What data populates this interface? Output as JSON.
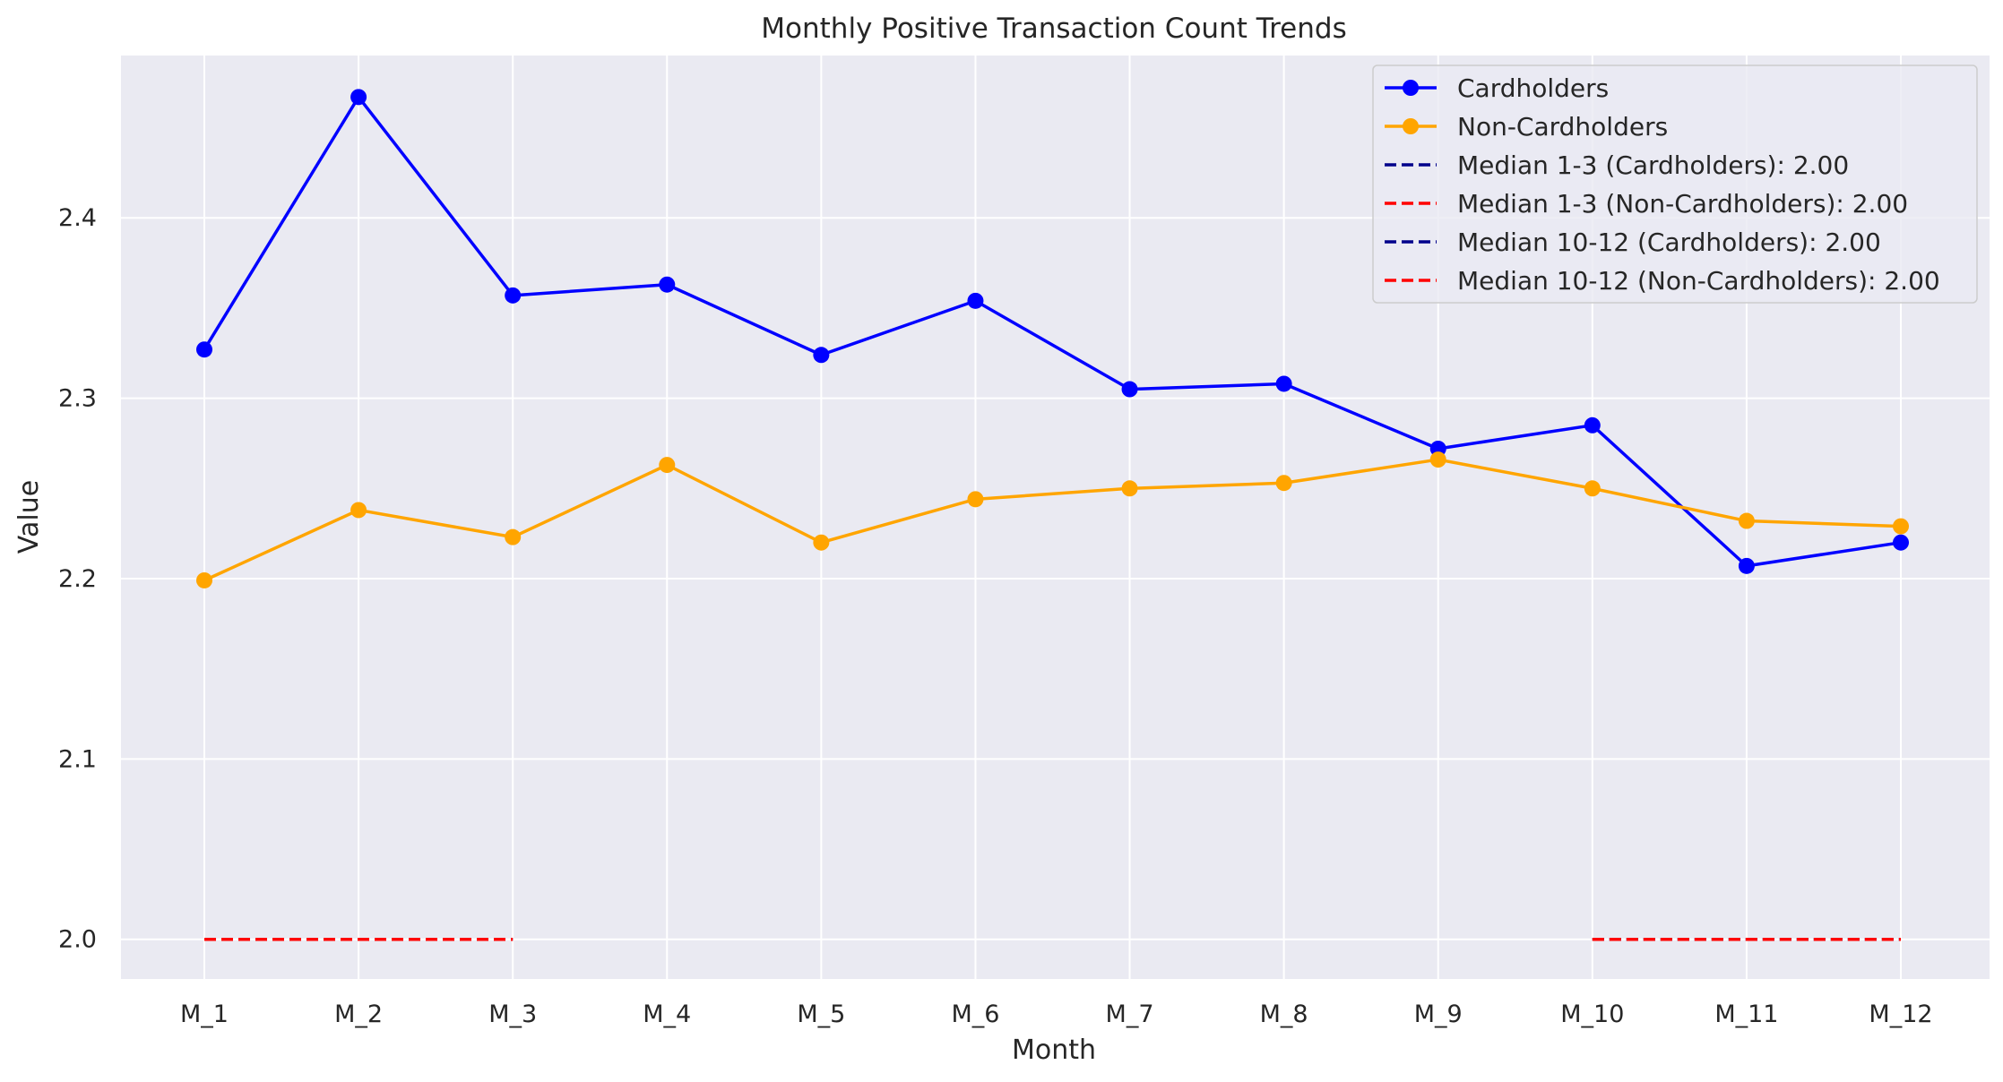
{
  "chart_data": {
    "type": "line",
    "title": "Monthly Positive Transaction Count Trends",
    "xlabel": "Month",
    "ylabel": "Value",
    "categories": [
      "M_1",
      "M_2",
      "M_3",
      "M_4",
      "M_5",
      "M_6",
      "M_7",
      "M_8",
      "M_9",
      "M_10",
      "M_11",
      "M_12"
    ],
    "ylim": [
      1.978,
      2.49
    ],
    "yticks": [
      2.0,
      2.1,
      2.2,
      2.3,
      2.4
    ],
    "ytick_labels": [
      "2.0",
      "2.1",
      "2.2",
      "2.3",
      "2.4"
    ],
    "grid": true,
    "legend_position": "top-right",
    "background": "#eaeaf2",
    "series": [
      {
        "name": "Cardholders",
        "color": "#0000ff",
        "marker": "circle",
        "values": [
          2.327,
          2.467,
          2.357,
          2.363,
          2.324,
          2.354,
          2.305,
          2.308,
          2.272,
          2.285,
          2.207,
          2.22
        ]
      },
      {
        "name": "Non-Cardholders",
        "color": "#ffa500",
        "marker": "circle",
        "values": [
          2.199,
          2.238,
          2.223,
          2.263,
          2.22,
          2.244,
          2.25,
          2.253,
          2.266,
          2.25,
          2.232,
          2.229
        ]
      }
    ],
    "reference_lines": [
      {
        "name": "Median 1-3 (Cardholders): 2.00",
        "color": "#00008b",
        "style": "dashed",
        "x_start": "M_1",
        "x_end": "M_3",
        "value": 2.0
      },
      {
        "name": "Median 1-3 (Non-Cardholders): 2.00",
        "color": "#ff0000",
        "style": "dashed",
        "x_start": "M_1",
        "x_end": "M_3",
        "value": 2.0
      },
      {
        "name": "Median 10-12 (Cardholders): 2.00",
        "color": "#00008b",
        "style": "dashed",
        "x_start": "M_10",
        "x_end": "M_12",
        "value": 2.0
      },
      {
        "name": "Median 10-12 (Non-Cardholders): 2.00",
        "color": "#ff0000",
        "style": "dashed",
        "x_start": "M_10",
        "x_end": "M_12",
        "value": 2.0
      }
    ]
  }
}
